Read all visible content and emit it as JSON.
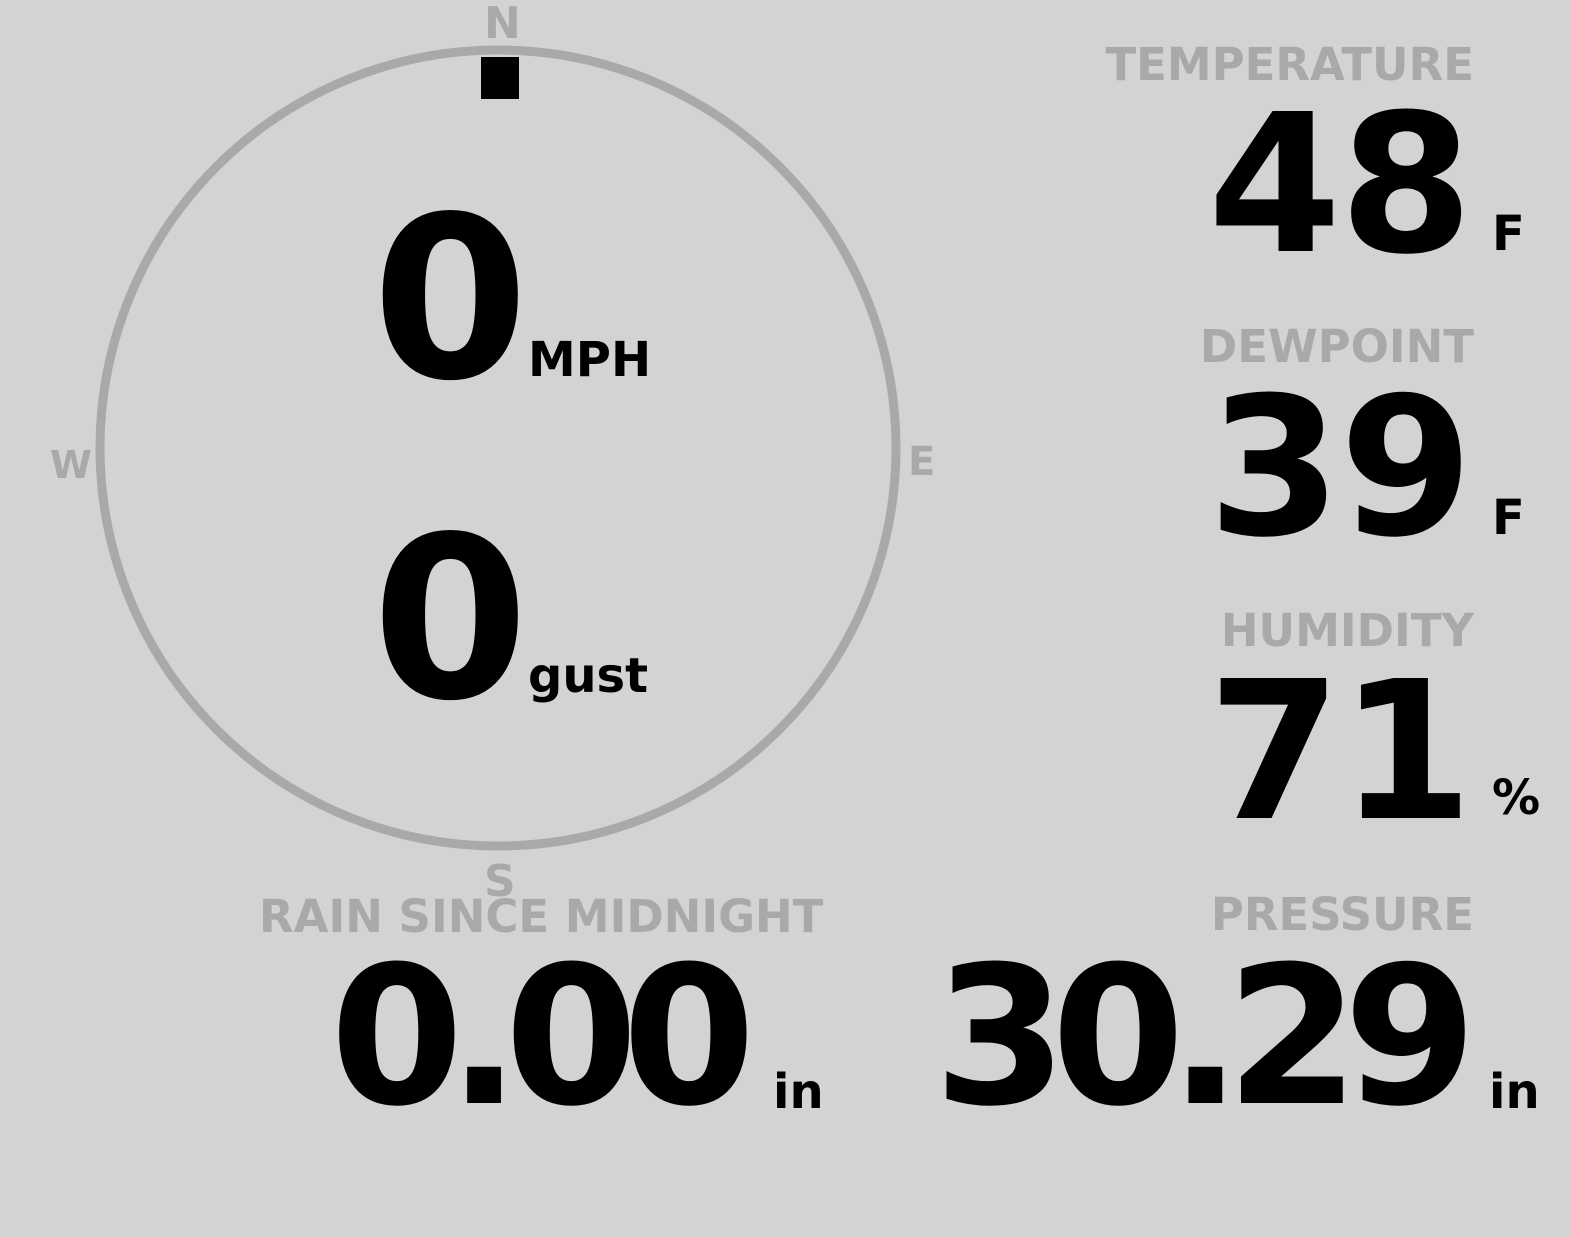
{
  "wind": {
    "compass": {
      "n": "N",
      "e": "E",
      "s": "S",
      "w": "W"
    },
    "direction_degrees": 0,
    "speed": "0",
    "speed_unit": "MPH",
    "gust": "0",
    "gust_unit": "gust"
  },
  "temperature": {
    "label": "TEMPERATURE",
    "value": "48",
    "unit": "F"
  },
  "dewpoint": {
    "label": "DEWPOINT",
    "value": "39",
    "unit": "F"
  },
  "humidity": {
    "label": "HUMIDITY",
    "value": "71",
    "unit": "%"
  },
  "rain": {
    "label": "RAIN SINCE MIDNIGHT",
    "value": "0.00",
    "unit": "in"
  },
  "pressure": {
    "label": "PRESSURE",
    "value": "30.29",
    "unit": "in"
  },
  "colors": {
    "background": "#d3d3d3",
    "label": "#a9a9a9",
    "value": "#000000"
  }
}
